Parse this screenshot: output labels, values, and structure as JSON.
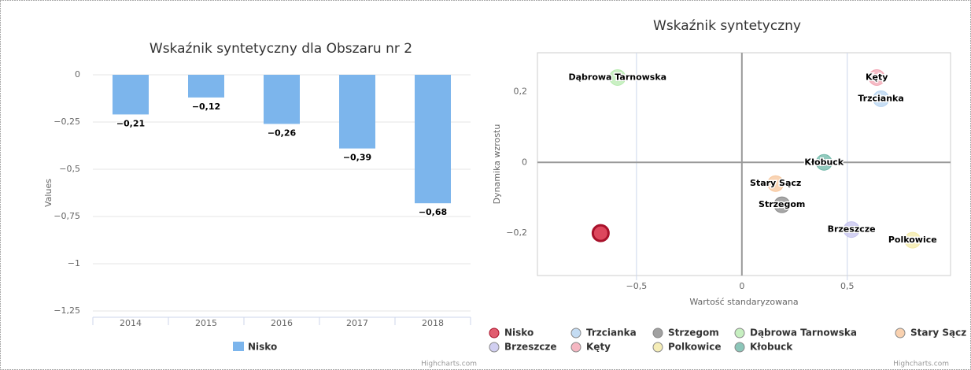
{
  "chart_data": [
    {
      "type": "bar",
      "title": "Wskaźnik syntetyczny dla Obszaru nr 2",
      "y_label": "Values",
      "categories": [
        "2014",
        "2015",
        "2016",
        "2017",
        "2018"
      ],
      "series": [
        {
          "name": "Nisko",
          "color": "#7cb5ec",
          "values": [
            -0.21,
            -0.12,
            -0.26,
            -0.39,
            -0.68
          ],
          "value_labels": [
            "−0,21",
            "−0,12",
            "−0,26",
            "−0,39",
            "−0,68"
          ]
        }
      ],
      "ylim": [
        -1.25,
        0
      ],
      "yticks": [
        0,
        {
          "value": -0.25,
          "label": "−0,25"
        },
        {
          "value": -0.5,
          "label": "−0,5"
        },
        {
          "value": -0.75,
          "label": "−0,75"
        },
        {
          "value": -1,
          "label": "−1"
        },
        {
          "value": -1.25,
          "label": "−1,25"
        }
      ],
      "grid": true,
      "legend": "bottom",
      "credits": "Highcharts.com"
    },
    {
      "type": "scatter",
      "title": "Wskaźnik syntetyczny",
      "x_label": "Wartość standaryzowana",
      "y_label": "Dynamika wzrostu",
      "series": [
        {
          "name": "Nisko",
          "color": "#d9334b",
          "x": [
            -0.67
          ],
          "values": [
            -0.2
          ]
        },
        {
          "name": "Trzcianka",
          "color": "#b5d3f0",
          "x": [
            0.66
          ],
          "values": [
            0.18
          ]
        },
        {
          "name": "Strzegom",
          "color": "#8a8a8a",
          "x": [
            0.19
          ],
          "values": [
            -0.12
          ]
        },
        {
          "name": "Dąbrowa Tarnowska",
          "color": "#b8ebb0",
          "x": [
            -0.59
          ],
          "values": [
            0.24
          ]
        },
        {
          "name": "Stary Sącz",
          "color": "#f7c59b",
          "x": [
            0.16
          ],
          "values": [
            -0.06
          ]
        },
        {
          "name": "Brzeszcze",
          "color": "#c5c3ee",
          "x": [
            0.52
          ],
          "values": [
            -0.19
          ]
        },
        {
          "name": "Kęty",
          "color": "#f2a5b3",
          "x": [
            0.64
          ],
          "values": [
            0.24
          ]
        },
        {
          "name": "Polkowice",
          "color": "#f3e9a5",
          "x": [
            0.81
          ],
          "values": [
            -0.22
          ]
        },
        {
          "name": "Kłobuck",
          "color": "#6fb8a8",
          "x": [
            0.39
          ],
          "values": [
            0
          ]
        }
      ],
      "xlim": [
        -0.97,
        0.99
      ],
      "ylim": [
        -0.32,
        0.31
      ],
      "xticks": [
        {
          "value": -0.5,
          "label": "−0,5"
        },
        0,
        {
          "value": 0.5,
          "label": "0,5"
        }
      ],
      "yticks": [
        {
          "value": -0.2,
          "label": "−0,2"
        },
        0,
        {
          "value": 0.2,
          "label": "0,2"
        }
      ],
      "legend": "bottom",
      "credits": "Highcharts.com"
    }
  ]
}
